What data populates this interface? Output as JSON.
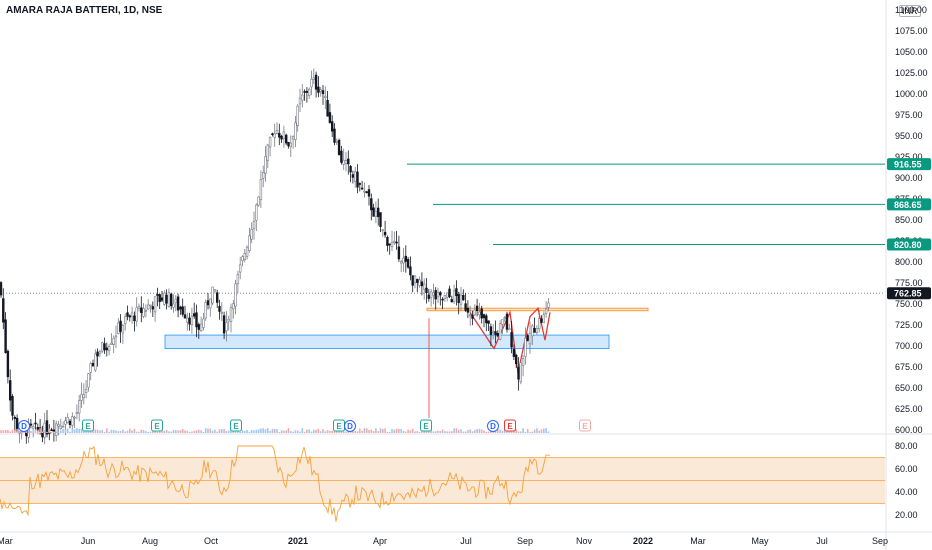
{
  "header": {
    "symbol": "AMARA RAJA BATTERI, 1D, NSE",
    "currency": "INR"
  },
  "price_axis": {
    "ticks": [
      "1100.00",
      "1075.00",
      "1050.00",
      "1025.00",
      "1000.00",
      "975.00",
      "950.00",
      "925.00",
      "900.00",
      "875.00",
      "850.00",
      "825.00",
      "800.00",
      "775.00",
      "750.00",
      "725.00",
      "700.00",
      "675.00",
      "650.00",
      "625.00",
      "600.00"
    ],
    "ylim": [
      595,
      1110
    ]
  },
  "price_tags": [
    {
      "id": "t1",
      "label": "916.55",
      "value": 916.55,
      "color": "#089981"
    },
    {
      "id": "t2",
      "label": "868.65",
      "value": 868.65,
      "color": "#089981"
    },
    {
      "id": "t3",
      "label": "820.80",
      "value": 820.8,
      "color": "#089981"
    },
    {
      "id": "last",
      "label": "762.85",
      "value": 762.85,
      "color": "#131722"
    }
  ],
  "rsi_axis": {
    "ticks": [
      "80.00",
      "60.00",
      "40.00",
      "20.00"
    ],
    "ylim": [
      5,
      88
    ],
    "band": [
      30,
      70
    ],
    "mid": 50
  },
  "time_axis": [
    {
      "label": "Mar",
      "bold": false
    },
    {
      "label": "Jun",
      "bold": false
    },
    {
      "label": "Aug",
      "bold": false
    },
    {
      "label": "Oct",
      "bold": false
    },
    {
      "label": "2021",
      "bold": true
    },
    {
      "label": "Apr",
      "bold": false
    },
    {
      "label": "Jul",
      "bold": false
    },
    {
      "label": "Sep",
      "bold": false
    },
    {
      "label": "Nov",
      "bold": false
    },
    {
      "label": "2022",
      "bold": true
    },
    {
      "label": "Mar",
      "bold": false
    },
    {
      "label": "May",
      "bold": false
    },
    {
      "label": "Jul",
      "bold": false
    },
    {
      "label": "Sep",
      "bold": false
    }
  ],
  "events": [
    {
      "letter": "D",
      "type": "dividend"
    },
    {
      "letter": "E",
      "type": "earnings"
    },
    {
      "letter": "E",
      "type": "earnings"
    },
    {
      "letter": "E",
      "type": "earnings"
    },
    {
      "letter": "E",
      "type": "earnings"
    },
    {
      "letter": "D",
      "type": "dividend"
    },
    {
      "letter": "E",
      "type": "earnings"
    },
    {
      "letter": "D",
      "type": "dividend"
    },
    {
      "letter": "E",
      "type": "earnings-negative"
    },
    {
      "letter": "E",
      "type": "earnings-future"
    }
  ],
  "colors": {
    "up": "#787b86",
    "down": "#131722",
    "rsi_line": "#f6a03a",
    "rsi_band": "#fbe9d8",
    "support_zone": "#cde4fb",
    "support_border": "#2196f3",
    "resistance": "#f59d3f",
    "pattern": "#e53935",
    "target_line": "#089981"
  },
  "chart_data": {
    "type": "candlestick",
    "title": "AMARA RAJA BATTERI, 1D, NSE",
    "approx_path": [
      {
        "date": "Mar 2020",
        "close": 775
      },
      {
        "date": "Apr 2020",
        "close": 600
      },
      {
        "date": "Jun 2020",
        "close": 700
      },
      {
        "date": "Aug 2020",
        "close": 760
      },
      {
        "date": "Sep 2020",
        "close": 720
      },
      {
        "date": "Oct 2020",
        "close": 780
      },
      {
        "date": "Dec 2020",
        "close": 960
      },
      {
        "date": "Jan 2021",
        "close": 1010
      },
      {
        "date": "Feb 2021",
        "close": 940
      },
      {
        "date": "Apr 2021",
        "close": 810
      },
      {
        "date": "May 2021",
        "close": 760
      },
      {
        "date": "Jul 2021",
        "close": 740
      },
      {
        "date": "Aug 2021",
        "close": 700
      },
      {
        "date": "Aug 2021",
        "close": 665
      },
      {
        "date": "Sep 2021",
        "close": 762.85
      }
    ],
    "last_price": 762.85,
    "target_levels": [
      916.55,
      868.65,
      820.8
    ],
    "ylim": [
      595,
      1110
    ]
  }
}
